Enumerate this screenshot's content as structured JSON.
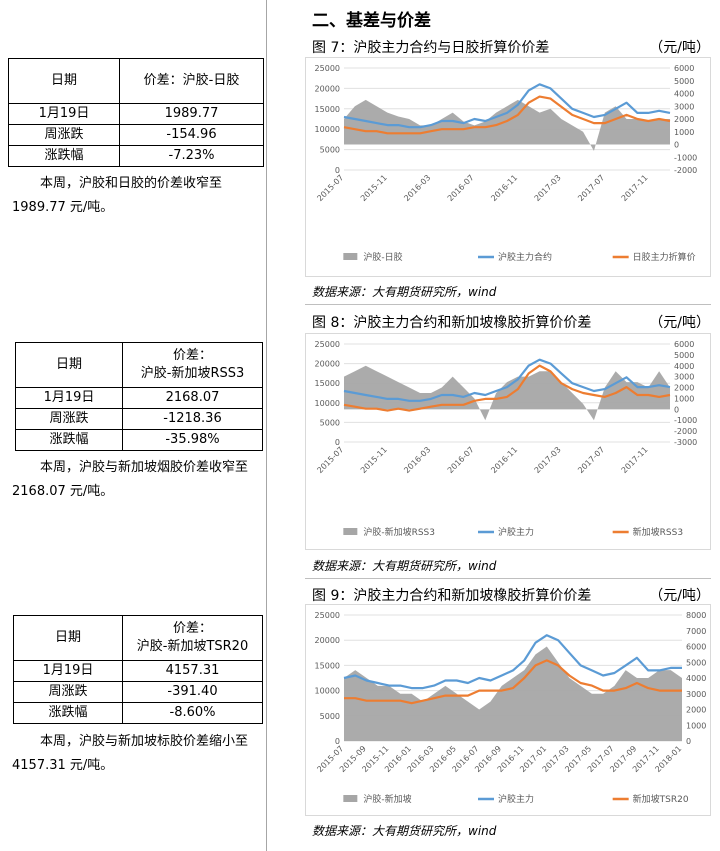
{
  "section_title": "二、基差与价差",
  "tables": [
    {
      "date_header": "日期",
      "spread_header": [
        "价差：沪胶-日胶"
      ],
      "date_value": "1月19日",
      "spread_value": "1989.77",
      "weekly_change_label": "周涨跌",
      "weekly_change_value": "-154.96",
      "pct_change_label": "涨跌幅",
      "pct_change_value": "-7.23%",
      "comment": "本周，沪胶和日胶的价差收窄至 1989.77 元/吨。"
    },
    {
      "date_header": "日期",
      "spread_header": [
        "价差：",
        "沪胶-新加坡RSS3"
      ],
      "date_value": "1月19日",
      "spread_value": "2168.07",
      "weekly_change_label": "周涨跌",
      "weekly_change_value": "-1218.36",
      "pct_change_label": "涨跌幅",
      "pct_change_value": "-35.98%",
      "comment": "本周，沪胶与新加坡烟胶价差收窄至 2168.07 元/吨。"
    },
    {
      "date_header": "日期",
      "spread_header": [
        "价差：",
        "沪胶-新加坡TSR20"
      ],
      "date_value": "1月19日",
      "spread_value": "4157.31",
      "weekly_change_label": "周涨跌",
      "weekly_change_value": "-391.40",
      "pct_change_label": "涨跌幅",
      "pct_change_value": "-8.60%",
      "comment": "本周，沪胶与新加坡标胶价差缩小至 4157.31 元/吨。"
    }
  ],
  "figures": [
    {
      "title": "图 7：沪胶主力合约与日胶折算价价差",
      "unit": "（元/吨）",
      "source": "数据来源：大有期货研究所，wind"
    },
    {
      "title": "图 8：沪胶主力合约和新加坡橡胶折算价价差",
      "unit": "（元/吨）",
      "source": "数据来源：大有期货研究所，wind"
    },
    {
      "title": "图 9：沪胶主力合约和新加坡橡胶折算价价差",
      "unit": "（元/吨）",
      "source": "数据来源：大有期货研究所，wind"
    }
  ],
  "chart_data": [
    {
      "type": "line",
      "x_tick_labels": [
        "2015-07",
        "2015-11",
        "2016-03",
        "2016-07",
        "2016-11",
        "2017-03",
        "2017-07",
        "2017-11"
      ],
      "x_range": [
        "2015-07",
        "2018-01"
      ],
      "ylim_left": [
        0,
        25000
      ],
      "yticks_left": [
        0,
        5000,
        10000,
        15000,
        20000,
        25000
      ],
      "ylim_right": [
        -2000,
        6000
      ],
      "yticks_right": [
        -2000,
        -1000,
        0,
        1000,
        2000,
        3000,
        4000,
        5000,
        6000
      ],
      "series": [
        {
          "name": "沪胶-日胶",
          "kind": "area",
          "axis": "right",
          "color": "#a6a6a6",
          "x": [
            "2015-07",
            "2015-08",
            "2015-09",
            "2015-10",
            "2015-11",
            "2015-12",
            "2016-01",
            "2016-02",
            "2016-03",
            "2016-04",
            "2016-05",
            "2016-06",
            "2016-07",
            "2016-08",
            "2016-09",
            "2016-10",
            "2016-11",
            "2016-12",
            "2017-01",
            "2017-02",
            "2017-03",
            "2017-04",
            "2017-05",
            "2017-06",
            "2017-07",
            "2017-08",
            "2017-09",
            "2017-10",
            "2017-11",
            "2017-12",
            "2018-01"
          ],
          "values": [
            2000,
            3000,
            3500,
            3000,
            2500,
            2200,
            2000,
            1500,
            1500,
            2000,
            2500,
            1800,
            1500,
            1800,
            2500,
            3000,
            3500,
            3000,
            2500,
            2800,
            2000,
            1500,
            1000,
            -500,
            2500,
            3000,
            2000,
            2000,
            1800,
            2000,
            2000
          ]
        },
        {
          "name": "沪胶主力合约",
          "kind": "line",
          "axis": "left",
          "color": "#5b9bd5",
          "x": [
            "2015-07",
            "2015-08",
            "2015-09",
            "2015-10",
            "2015-11",
            "2015-12",
            "2016-01",
            "2016-02",
            "2016-03",
            "2016-04",
            "2016-05",
            "2016-06",
            "2016-07",
            "2016-08",
            "2016-09",
            "2016-10",
            "2016-11",
            "2016-12",
            "2017-01",
            "2017-02",
            "2017-03",
            "2017-04",
            "2017-05",
            "2017-06",
            "2017-07",
            "2017-08",
            "2017-09",
            "2017-10",
            "2017-11",
            "2017-12",
            "2018-01"
          ],
          "values": [
            13000,
            12500,
            12000,
            11500,
            11000,
            11000,
            10500,
            10500,
            11000,
            12000,
            12000,
            11500,
            12500,
            12000,
            13000,
            14000,
            16000,
            19500,
            21000,
            20000,
            17500,
            15000,
            14000,
            13000,
            13500,
            15000,
            16500,
            14000,
            14000,
            14500,
            14000
          ]
        },
        {
          "name": "日胶主力折算价",
          "kind": "line",
          "axis": "left",
          "color": "#ed7d31",
          "x": [
            "2015-07",
            "2015-08",
            "2015-09",
            "2015-10",
            "2015-11",
            "2015-12",
            "2016-01",
            "2016-02",
            "2016-03",
            "2016-04",
            "2016-05",
            "2016-06",
            "2016-07",
            "2016-08",
            "2016-09",
            "2016-10",
            "2016-11",
            "2016-12",
            "2017-01",
            "2017-02",
            "2017-03",
            "2017-04",
            "2017-05",
            "2017-06",
            "2017-07",
            "2017-08",
            "2017-09",
            "2017-10",
            "2017-11",
            "2017-12",
            "2018-01"
          ],
          "values": [
            10500,
            10000,
            9500,
            9500,
            9000,
            9000,
            9000,
            9000,
            9500,
            10000,
            10000,
            10000,
            10500,
            10500,
            11000,
            12000,
            13500,
            16500,
            18000,
            17500,
            15500,
            13500,
            12500,
            11500,
            11500,
            12500,
            13500,
            12500,
            12000,
            12500,
            12000
          ]
        }
      ]
    },
    {
      "type": "line",
      "x_tick_labels": [
        "2015-07",
        "2015-11",
        "2016-03",
        "2016-07",
        "2016-11",
        "2017-03",
        "2017-07",
        "2017-11"
      ],
      "x_range": [
        "2015-07",
        "2018-01"
      ],
      "ylim_left": [
        0,
        25000
      ],
      "yticks_left": [
        0,
        5000,
        10000,
        15000,
        20000,
        25000
      ],
      "ylim_right": [
        -3000,
        6000
      ],
      "yticks_right": [
        -3000,
        -2000,
        -1000,
        0,
        1000,
        2000,
        3000,
        4000,
        5000,
        6000
      ],
      "series": [
        {
          "name": "沪胶-新加坡RSS3",
          "kind": "area",
          "axis": "right",
          "color": "#a6a6a6",
          "x": [
            "2015-07",
            "2015-08",
            "2015-09",
            "2015-10",
            "2015-11",
            "2015-12",
            "2016-01",
            "2016-02",
            "2016-03",
            "2016-04",
            "2016-05",
            "2016-06",
            "2016-07",
            "2016-08",
            "2016-09",
            "2016-10",
            "2016-11",
            "2016-12",
            "2017-01",
            "2017-02",
            "2017-03",
            "2017-04",
            "2017-05",
            "2017-06",
            "2017-07",
            "2017-08",
            "2017-09",
            "2017-10",
            "2017-11",
            "2017-12",
            "2018-01"
          ],
          "values": [
            3000,
            3500,
            4000,
            3500,
            3000,
            2500,
            2000,
            1500,
            1500,
            2000,
            3000,
            2000,
            1000,
            -1000,
            1500,
            2500,
            3000,
            3000,
            3500,
            3500,
            2500,
            1500,
            500,
            -1000,
            2000,
            3500,
            2500,
            2500,
            2000,
            3500,
            2000
          ]
        },
        {
          "name": "沪胶主力",
          "kind": "line",
          "axis": "left",
          "color": "#5b9bd5",
          "x": [
            "2015-07",
            "2015-08",
            "2015-09",
            "2015-10",
            "2015-11",
            "2015-12",
            "2016-01",
            "2016-02",
            "2016-03",
            "2016-04",
            "2016-05",
            "2016-06",
            "2016-07",
            "2016-08",
            "2016-09",
            "2016-10",
            "2016-11",
            "2016-12",
            "2017-01",
            "2017-02",
            "2017-03",
            "2017-04",
            "2017-05",
            "2017-06",
            "2017-07",
            "2017-08",
            "2017-09",
            "2017-10",
            "2017-11",
            "2017-12",
            "2018-01"
          ],
          "values": [
            13000,
            12500,
            12000,
            11500,
            11000,
            11000,
            10500,
            10500,
            11000,
            12000,
            12000,
            11500,
            12500,
            12000,
            13000,
            14000,
            16000,
            19500,
            21000,
            20000,
            17500,
            15000,
            14000,
            13000,
            13500,
            15000,
            16500,
            14000,
            14000,
            14500,
            14000
          ]
        },
        {
          "name": "新加坡RSS3",
          "kind": "line",
          "axis": "left",
          "color": "#ed7d31",
          "x": [
            "2015-07",
            "2015-08",
            "2015-09",
            "2015-10",
            "2015-11",
            "2015-12",
            "2016-01",
            "2016-02",
            "2016-03",
            "2016-04",
            "2016-05",
            "2016-06",
            "2016-07",
            "2016-08",
            "2016-09",
            "2016-10",
            "2016-11",
            "2016-12",
            "2017-01",
            "2017-02",
            "2017-03",
            "2017-04",
            "2017-05",
            "2017-06",
            "2017-07",
            "2017-08",
            "2017-09",
            "2017-10",
            "2017-11",
            "2017-12",
            "2018-01"
          ],
          "values": [
            9500,
            9000,
            8500,
            8500,
            8000,
            8500,
            8000,
            8500,
            9000,
            9500,
            9500,
            9500,
            10500,
            11000,
            11000,
            11500,
            13500,
            17500,
            19500,
            18000,
            15000,
            13500,
            12500,
            12000,
            11500,
            12500,
            14000,
            12000,
            12000,
            11500,
            12000
          ]
        }
      ]
    },
    {
      "type": "line",
      "x_tick_labels": [
        "2015-07",
        "2015-09",
        "2015-11",
        "2016-01",
        "2016-03",
        "2016-05",
        "2016-07",
        "2016-09",
        "2016-11",
        "2017-01",
        "2017-03",
        "2017-05",
        "2017-07",
        "2017-09",
        "2017-11",
        "2018-01"
      ],
      "x_range": [
        "2015-07",
        "2018-01"
      ],
      "ylim_left": [
        0,
        25000
      ],
      "yticks_left": [
        0,
        5000,
        10000,
        15000,
        20000,
        25000
      ],
      "ylim_right": [
        0,
        8000
      ],
      "yticks_right": [
        0,
        1000,
        2000,
        3000,
        4000,
        5000,
        6000,
        7000,
        8000
      ],
      "series": [
        {
          "name": "沪胶-新加坡",
          "kind": "area",
          "axis": "right",
          "color": "#a6a6a6",
          "x": [
            "2015-07",
            "2015-08",
            "2015-09",
            "2015-10",
            "2015-11",
            "2015-12",
            "2016-01",
            "2016-02",
            "2016-03",
            "2016-04",
            "2016-05",
            "2016-06",
            "2016-07",
            "2016-08",
            "2016-09",
            "2016-10",
            "2016-11",
            "2016-12",
            "2017-01",
            "2017-02",
            "2017-03",
            "2017-04",
            "2017-05",
            "2017-06",
            "2017-07",
            "2017-08",
            "2017-09",
            "2017-10",
            "2017-11",
            "2017-12",
            "2018-01"
          ],
          "values": [
            4000,
            4500,
            4000,
            3500,
            3500,
            3000,
            3000,
            2500,
            3000,
            3500,
            3000,
            2500,
            2000,
            2500,
            3500,
            4000,
            4500,
            5500,
            6000,
            5000,
            4000,
            3500,
            3000,
            3000,
            3500,
            4500,
            4000,
            4000,
            4500,
            4500,
            4000
          ]
        },
        {
          "name": "沪胶主力",
          "kind": "line",
          "axis": "left",
          "color": "#5b9bd5",
          "x": [
            "2015-07",
            "2015-08",
            "2015-09",
            "2015-10",
            "2015-11",
            "2015-12",
            "2016-01",
            "2016-02",
            "2016-03",
            "2016-04",
            "2016-05",
            "2016-06",
            "2016-07",
            "2016-08",
            "2016-09",
            "2016-10",
            "2016-11",
            "2016-12",
            "2017-01",
            "2017-02",
            "2017-03",
            "2017-04",
            "2017-05",
            "2017-06",
            "2017-07",
            "2017-08",
            "2017-09",
            "2017-10",
            "2017-11",
            "2017-12",
            "2018-01"
          ],
          "values": [
            12500,
            13000,
            12000,
            11500,
            11000,
            11000,
            10500,
            10500,
            11000,
            12000,
            12000,
            11500,
            12500,
            12000,
            13000,
            14000,
            16000,
            19500,
            21000,
            20000,
            17500,
            15000,
            14000,
            13000,
            13500,
            15000,
            16500,
            14000,
            14000,
            14500,
            14500
          ]
        },
        {
          "name": "新加坡TSR20",
          "kind": "line",
          "axis": "left",
          "color": "#ed7d31",
          "x": [
            "2015-07",
            "2015-08",
            "2015-09",
            "2015-10",
            "2015-11",
            "2015-12",
            "2016-01",
            "2016-02",
            "2016-03",
            "2016-04",
            "2016-05",
            "2016-06",
            "2016-07",
            "2016-08",
            "2016-09",
            "2016-10",
            "2016-11",
            "2016-12",
            "2017-01",
            "2017-02",
            "2017-03",
            "2017-04",
            "2017-05",
            "2017-06",
            "2017-07",
            "2017-08",
            "2017-09",
            "2017-10",
            "2017-11",
            "2017-12",
            "2018-01"
          ],
          "values": [
            8500,
            8500,
            8000,
            8000,
            8000,
            8000,
            7500,
            8000,
            8500,
            9000,
            9000,
            9000,
            10000,
            10000,
            10000,
            10500,
            12500,
            15000,
            16000,
            15000,
            13000,
            11500,
            11000,
            10000,
            10000,
            10500,
            11500,
            10500,
            10000,
            10000,
            10000
          ]
        }
      ]
    }
  ]
}
